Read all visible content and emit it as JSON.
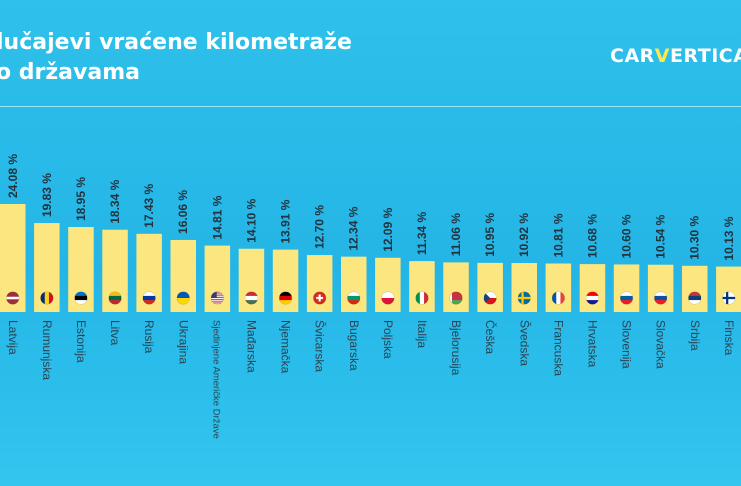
{
  "header": {
    "title_line1": "lučajevi vraćene kilometraže",
    "title_line2": "o državama"
  },
  "logo": {
    "text_pre": "CAR",
    "text_v": "V",
    "text_post": "ERTICA"
  },
  "colors": {
    "background": "#25b8e8",
    "bar": "#fbe680",
    "text_dark": "#22333f",
    "axis_text": "#2a4452",
    "logo_accent": "#ffe84d"
  },
  "chart_data": {
    "type": "bar",
    "title": "lučajevi vraćene kilometraže\no državama",
    "categories": [
      "Latvija",
      "Rumunjska",
      "Estonija",
      "Litva",
      "Rusija",
      "Ukrajina",
      "Sjedinjene Američke Države",
      "Mađarska",
      "Njemačka",
      "Švicarska",
      "Bugarska",
      "Poljska",
      "Italija",
      "Bjelorusija",
      "Češka",
      "Švedska",
      "Francuska",
      "Hrvatska",
      "Slovenija",
      "Slovačka",
      "Srbija",
      "Finska"
    ],
    "values": [
      24.08,
      19.83,
      18.95,
      18.34,
      17.43,
      16.06,
      14.81,
      14.1,
      13.91,
      12.7,
      12.34,
      12.09,
      11.34,
      11.06,
      10.95,
      10.92,
      10.81,
      10.68,
      10.6,
      10.54,
      10.3,
      10.13
    ],
    "value_labels": [
      "24.08 %",
      "19.83 %",
      "18.95 %",
      "18.34 %",
      "17.43 %",
      "16.06 %",
      "14.81 %",
      "14.10 %",
      "13.91 %",
      "12.70 %",
      "12.34 %",
      "12.09 %",
      "11.34 %",
      "11.06 %",
      "10.95 %",
      "10.92 %",
      "10.81 %",
      "10.68 %",
      "10.60 %",
      "10.54 %",
      "10.30 %",
      "10.13 %"
    ],
    "flag_icons": [
      "latvia-flag",
      "romania-flag",
      "estonia-flag",
      "lithuania-flag",
      "russia-flag",
      "ukraine-flag",
      "usa-flag",
      "hungary-flag",
      "germany-flag",
      "switzerland-flag",
      "bulgaria-flag",
      "poland-flag",
      "italy-flag",
      "belarus-flag",
      "czechia-flag",
      "sweden-flag",
      "france-flag",
      "croatia-flag",
      "slovenia-flag",
      "slovakia-flag",
      "serbia-flag",
      "finland-flag"
    ],
    "xlabel": "",
    "ylabel": "",
    "grid": false,
    "legend": "none"
  }
}
